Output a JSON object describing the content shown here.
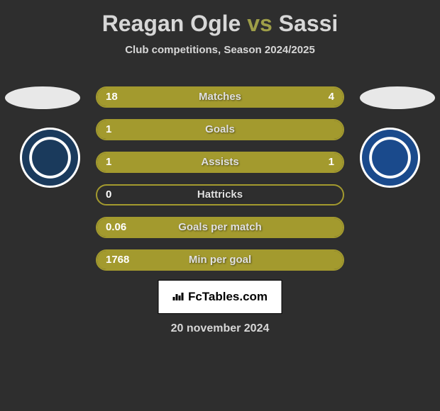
{
  "title": {
    "player1": "Reagan Ogle",
    "vs": "vs",
    "player2": "Sassi"
  },
  "subtitle": "Club competitions, Season 2024/2025",
  "colors": {
    "background": "#2e2e2e",
    "accent": "#a39a2e",
    "text": "#d7d7d7",
    "title_vs": "#9e9e48"
  },
  "stats": [
    {
      "label": "Matches",
      "left_val": "18",
      "right_val": "4",
      "left_pct": 78,
      "right_pct": 22
    },
    {
      "label": "Goals",
      "left_val": "1",
      "right_val": "",
      "left_pct": 100,
      "right_pct": 0
    },
    {
      "label": "Assists",
      "left_val": "1",
      "right_val": "1",
      "left_pct": 50,
      "right_pct": 50
    },
    {
      "label": "Hattricks",
      "left_val": "0",
      "right_val": "",
      "left_pct": 0,
      "right_pct": 0
    },
    {
      "label": "Goals per match",
      "left_val": "0.06",
      "right_val": "",
      "left_pct": 100,
      "right_pct": 0
    },
    {
      "label": "Min per goal",
      "left_val": "1768",
      "right_val": "",
      "left_pct": 100,
      "right_pct": 0
    }
  ],
  "brand": "FcTables.com",
  "date": "20 november 2024"
}
